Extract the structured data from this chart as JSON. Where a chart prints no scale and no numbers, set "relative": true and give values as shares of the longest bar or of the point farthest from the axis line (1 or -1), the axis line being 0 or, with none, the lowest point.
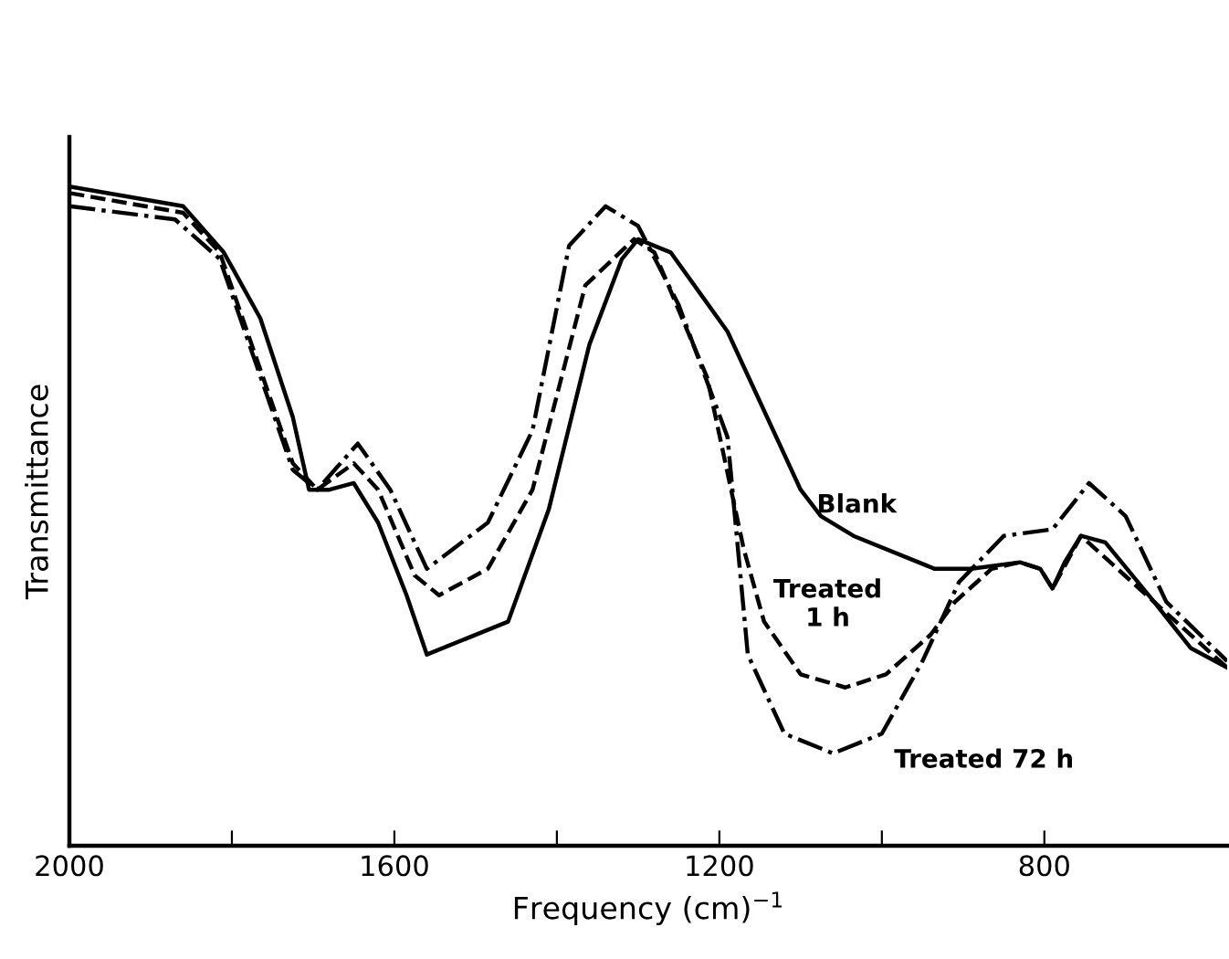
{
  "chart_data": {
    "type": "line",
    "relative": true,
    "xlabel": "Frequency (cm)$^{−1}$",
    "ylabel": "Transmittance",
    "xlim": [
      2000,
      575
    ],
    "xticks": [
      2000,
      {
        "value": 1800,
        "label": null
      },
      1600,
      {
        "value": 1400,
        "label": null
      },
      1200,
      {
        "value": 1000,
        "label": null
      },
      800
    ],
    "grid": false,
    "legend": false,
    "series": [
      {
        "name": "Blank",
        "color": "#000000",
        "line_style": "solid",
        "x": [
          2000,
          1860,
          1810,
          1765,
          1725,
          1705,
          1680,
          1650,
          1620,
          1585,
          1560,
          1460,
          1410,
          1360,
          1320,
          1300,
          1260,
          1190,
          1100,
          1075,
          1035,
          935,
          890,
          830,
          805,
          790,
          775,
          755,
          725,
          665,
          620,
          575
        ],
        "values": [
          1.0,
          0.97,
          0.9,
          0.8,
          0.65,
          0.54,
          0.54,
          0.55,
          0.49,
          0.38,
          0.29,
          0.34,
          0.51,
          0.76,
          0.89,
          0.92,
          0.9,
          0.78,
          0.54,
          0.5,
          0.47,
          0.42,
          0.42,
          0.43,
          0.42,
          0.39,
          0.43,
          0.47,
          0.46,
          0.37,
          0.3,
          0.27
        ]
      },
      {
        "name": "Treated\n1 h",
        "color": "#000000",
        "line_style": "dashed",
        "x": [
          2000,
          1860,
          1815,
          1725,
          1695,
          1650,
          1620,
          1575,
          1545,
          1485,
          1430,
          1365,
          1305,
          1280,
          1215,
          1170,
          1145,
          1100,
          1045,
          995,
          940,
          910,
          865,
          830,
          805,
          790,
          755,
          665,
          575
        ],
        "values": [
          0.99,
          0.96,
          0.9,
          0.58,
          0.54,
          0.58,
          0.54,
          0.41,
          0.38,
          0.42,
          0.54,
          0.85,
          0.92,
          0.9,
          0.71,
          0.45,
          0.34,
          0.26,
          0.24,
          0.26,
          0.32,
          0.37,
          0.42,
          0.43,
          0.42,
          0.39,
          0.47,
          0.37,
          0.27
        ]
      },
      {
        "name": "Treated 72 h",
        "color": "#000000",
        "line_style": "dashdot",
        "x": [
          2000,
          1870,
          1815,
          1725,
          1695,
          1645,
          1605,
          1560,
          1485,
          1430,
          1385,
          1340,
          1300,
          1250,
          1190,
          1165,
          1120,
          1060,
          1000,
          950,
          905,
          850,
          790,
          745,
          700,
          650,
          575
        ],
        "values": [
          0.97,
          0.95,
          0.89,
          0.57,
          0.54,
          0.61,
          0.54,
          0.42,
          0.49,
          0.63,
          0.91,
          0.97,
          0.94,
          0.82,
          0.62,
          0.29,
          0.17,
          0.14,
          0.17,
          0.28,
          0.4,
          0.47,
          0.48,
          0.55,
          0.5,
          0.37,
          0.28
        ]
      }
    ]
  }
}
